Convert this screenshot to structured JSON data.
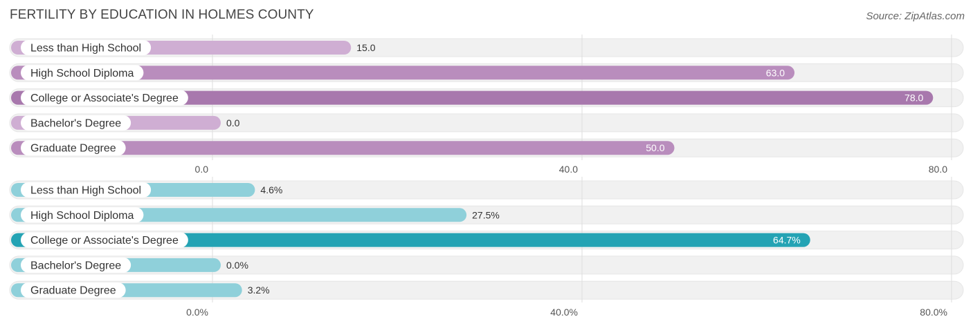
{
  "header": {
    "title": "FERTILITY BY EDUCATION IN HOLMES COUNTY",
    "source": "Source: ZipAtlas.com"
  },
  "colors": {
    "purple_light": "#cfaed3",
    "purple": "#b98dbd",
    "purple_strong": "#a878ad",
    "teal_light": "#8fd0da",
    "teal": "#63bcc8",
    "teal_strong": "#24a3b4",
    "track": "#f1f1f1"
  },
  "chart_data": [
    {
      "type": "bar",
      "orientation": "horizontal",
      "categories": [
        "Less than High School",
        "High School Diploma",
        "College or Associate's Degree",
        "Bachelor's Degree",
        "Graduate Degree"
      ],
      "values": [
        15.0,
        63.0,
        78.0,
        0.0,
        50.0
      ],
      "value_labels": [
        "15.0",
        "63.0",
        "78.0",
        "0.0",
        "50.0"
      ],
      "xlim": [
        0,
        80
      ],
      "ticks": [
        0,
        40,
        80
      ],
      "tick_labels": [
        "0.0",
        "40.0",
        "80.0"
      ],
      "palette": "purple"
    },
    {
      "type": "bar",
      "orientation": "horizontal",
      "categories": [
        "Less than High School",
        "High School Diploma",
        "College or Associate's Degree",
        "Bachelor's Degree",
        "Graduate Degree"
      ],
      "values": [
        4.6,
        27.5,
        64.7,
        0.0,
        3.2
      ],
      "value_labels": [
        "4.6%",
        "27.5%",
        "64.7%",
        "0.0%",
        "3.2%"
      ],
      "xlim": [
        0,
        80
      ],
      "ticks": [
        0,
        40,
        80
      ],
      "tick_labels": [
        "0.0%",
        "40.0%",
        "80.0%"
      ],
      "palette": "teal"
    }
  ]
}
